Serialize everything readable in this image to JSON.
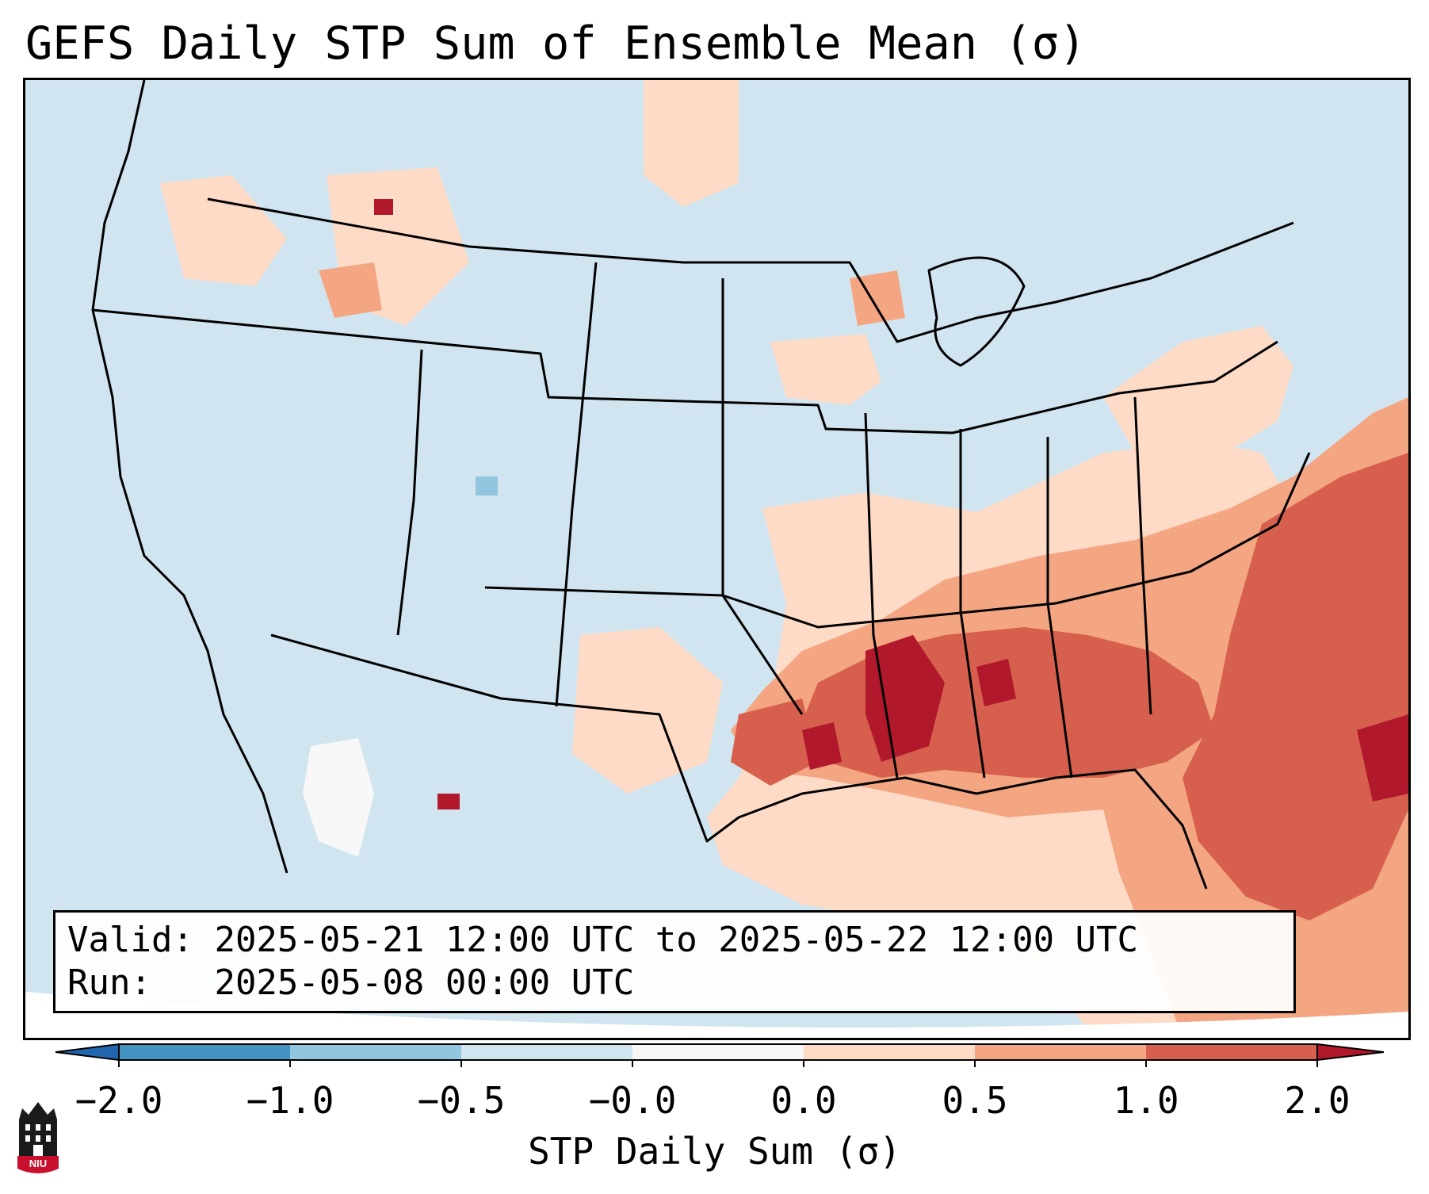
{
  "title": "GEFS Daily STP Sum of Ensemble Mean (σ)",
  "info": {
    "valid_label": "Valid:",
    "valid_text": "2025-05-21 12:00 UTC to 2025-05-22 12:00 UTC",
    "run_label": "Run:",
    "run_text": "2025-05-08 00:00 UTC"
  },
  "colorbar": {
    "label": "STP Daily Sum (σ)",
    "ticks": [
      "−2.0",
      "−1.0",
      "−0.5",
      "−0.0",
      "0.0",
      "0.5",
      "1.0",
      "2.0"
    ],
    "bins": [
      {
        "range": "< -2.0",
        "color": "#2166ac"
      },
      {
        "range": "-2.0 to -1.0",
        "color": "#4393c3"
      },
      {
        "range": "-1.0 to -0.5",
        "color": "#92c5de"
      },
      {
        "range": "-0.5 to -0.0",
        "color": "#d1e5f0"
      },
      {
        "range": "-0.0 to 0.0",
        "color": "#f7f7f7"
      },
      {
        "range": "0.0 to 0.5",
        "color": "#fddbc7"
      },
      {
        "range": "0.5 to 1.0",
        "color": "#f4a582"
      },
      {
        "range": "1.0 to 2.0",
        "color": "#d6604d"
      },
      {
        "range": "> 2.0",
        "color": "#b2182b"
      }
    ]
  },
  "logo": {
    "text": "NIU",
    "primary_color": "#c8102e"
  },
  "map": {
    "region": "Continental United States",
    "background_color": "#d1e5f0",
    "max_anomaly_region": "Lower Mississippi Valley, Southeast US and western Atlantic"
  }
}
